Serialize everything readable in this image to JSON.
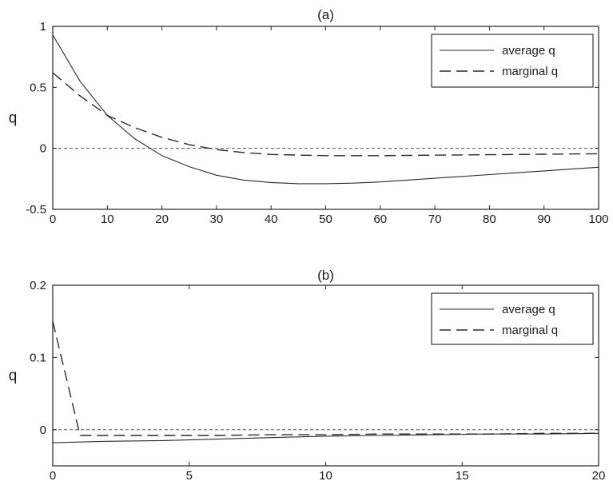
{
  "chart_data": [
    {
      "type": "line",
      "title": "(a)",
      "xlabel": "",
      "ylabel": "q",
      "xlim": [
        0,
        100
      ],
      "ylim": [
        -0.5,
        1
      ],
      "xticks": [
        0,
        10,
        20,
        30,
        40,
        50,
        60,
        70,
        80,
        90,
        100
      ],
      "yticks": [
        -0.5,
        0,
        0.5,
        1
      ],
      "xtick_labels": [
        "0",
        "10",
        "20",
        "30",
        "40",
        "50",
        "60",
        "70",
        "80",
        "90",
        "100"
      ],
      "ytick_labels": [
        "-0.5",
        "0",
        "0.5",
        "1"
      ],
      "zero_line": true,
      "legend_position": "top-right",
      "series": [
        {
          "name": "average q",
          "style": "solid",
          "x": [
            0,
            5,
            10,
            15,
            20,
            25,
            30,
            35,
            40,
            45,
            50,
            55,
            60,
            65,
            70,
            75,
            80,
            85,
            90,
            95,
            100
          ],
          "y": [
            0.93,
            0.55,
            0.27,
            0.08,
            -0.06,
            -0.15,
            -0.22,
            -0.26,
            -0.28,
            -0.29,
            -0.29,
            -0.285,
            -0.275,
            -0.26,
            -0.245,
            -0.23,
            -0.215,
            -0.2,
            -0.185,
            -0.17,
            -0.155
          ]
        },
        {
          "name": "marginal q",
          "style": "dashed",
          "x": [
            0,
            5,
            10,
            15,
            20,
            25,
            30,
            35,
            40,
            45,
            50,
            55,
            60,
            65,
            70,
            75,
            80,
            85,
            90,
            95,
            100
          ],
          "y": [
            0.62,
            0.43,
            0.27,
            0.17,
            0.09,
            0.03,
            -0.01,
            -0.035,
            -0.05,
            -0.055,
            -0.06,
            -0.06,
            -0.06,
            -0.058,
            -0.056,
            -0.054,
            -0.052,
            -0.05,
            -0.048,
            -0.046,
            -0.044
          ]
        }
      ]
    },
    {
      "type": "line",
      "title": "(b)",
      "xlabel": "",
      "ylabel": "q",
      "xlim": [
        0,
        20
      ],
      "ylim": [
        -0.05,
        0.2
      ],
      "xticks": [
        0,
        5,
        10,
        15,
        20
      ],
      "yticks": [
        0,
        0.1,
        0.2
      ],
      "xtick_labels": [
        "0",
        "5",
        "10",
        "15",
        "20"
      ],
      "ytick_labels": [
        "0",
        "0.1",
        "0.2"
      ],
      "zero_line": true,
      "legend_position": "top-right",
      "series": [
        {
          "name": "average q",
          "style": "solid",
          "x": [
            0,
            1,
            2,
            4,
            6,
            8,
            10,
            12,
            14,
            16,
            18,
            20
          ],
          "y": [
            -0.018,
            -0.017,
            -0.016,
            -0.015,
            -0.013,
            -0.011,
            -0.009,
            -0.008,
            -0.007,
            -0.006,
            -0.006,
            -0.005
          ]
        },
        {
          "name": "marginal q",
          "style": "dashed",
          "x": [
            0,
            1,
            2,
            4,
            6,
            8,
            10,
            12,
            14,
            16,
            18,
            20
          ],
          "y": [
            0.15,
            -0.008,
            -0.008,
            -0.008,
            -0.008,
            -0.007,
            -0.007,
            -0.006,
            -0.006,
            -0.006,
            -0.005,
            -0.005
          ]
        }
      ]
    }
  ]
}
